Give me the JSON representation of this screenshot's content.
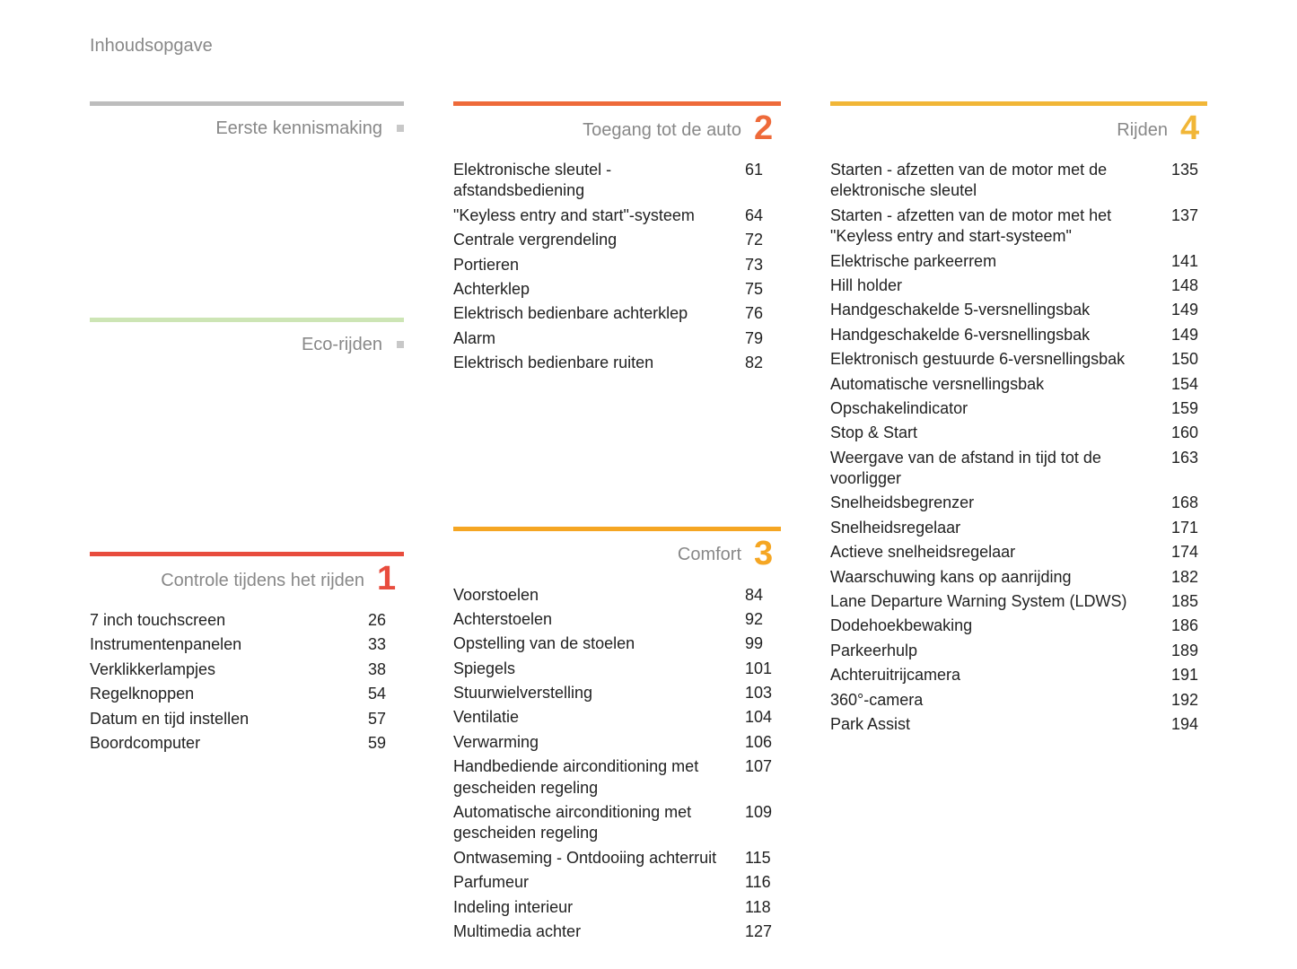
{
  "page_title": "Inhoudsopgave",
  "colors": {
    "gray": "#bdbdbd",
    "lightgreen": "#cde5b5",
    "red": "#e84c3d",
    "orange": "#ee6a3a",
    "amber": "#f5a623",
    "gold": "#f1b637",
    "text_muted": "#888888"
  },
  "left_column": [
    {
      "rule_color": "#bdbdbd",
      "title": "Eerste kennismaking",
      "has_dot": true,
      "entries": []
    },
    {
      "rule_color": "#cde5b5",
      "title": "Eco-rijden",
      "has_dot": true,
      "entries": []
    },
    {
      "rule_color": "#e84c3d",
      "title": "Controle tijdens het rijden",
      "number": "1",
      "number_color": "#e84c3d",
      "entries": [
        {
          "label": "7 inch touchscreen",
          "page": "26"
        },
        {
          "label": "Instrumentenpanelen",
          "page": "33"
        },
        {
          "label": "Verklikkerlampjes",
          "page": "38"
        },
        {
          "label": "Regelknoppen",
          "page": "54"
        },
        {
          "label": "Datum en tijd instellen",
          "page": "57"
        },
        {
          "label": "Boordcomputer",
          "page": "59"
        }
      ]
    }
  ],
  "mid_column": [
    {
      "rule_color": "#ee6a3a",
      "title": "Toegang tot de auto",
      "number": "2",
      "number_color": "#ee6a3a",
      "entries": [
        {
          "label": "Elektronische sleutel - afstandsbediening",
          "page": "61"
        },
        {
          "label": "\"Keyless entry and start\"-systeem",
          "page": "64"
        },
        {
          "label": "Centrale vergrendeling",
          "page": "72"
        },
        {
          "label": "Portieren",
          "page": "73"
        },
        {
          "label": "Achterklep",
          "page": "75"
        },
        {
          "label": "Elektrisch bedienbare achterklep",
          "page": "76"
        },
        {
          "label": "Alarm",
          "page": "79"
        },
        {
          "label": "Elektrisch bedienbare ruiten",
          "page": "82"
        }
      ]
    },
    {
      "rule_color": "#f5a623",
      "title": "Comfort",
      "number": "3",
      "number_color": "#f5a623",
      "entries": [
        {
          "label": "Voorstoelen",
          "page": "84"
        },
        {
          "label": "Achterstoelen",
          "page": "92"
        },
        {
          "label": "Opstelling van de stoelen",
          "page": "99"
        },
        {
          "label": "Spiegels",
          "page": "101"
        },
        {
          "label": "Stuurwielverstelling",
          "page": "103"
        },
        {
          "label": "Ventilatie",
          "page": "104"
        },
        {
          "label": "Verwarming",
          "page": "106"
        },
        {
          "label": "Handbediende airconditioning met gescheiden regeling",
          "page": "107"
        },
        {
          "label": "Automatische airconditioning met gescheiden regeling",
          "page": "109"
        },
        {
          "label": "Ontwaseming - Ontdooiing achterruit",
          "page": "115"
        },
        {
          "label": "Parfumeur",
          "page": "116"
        },
        {
          "label": "Indeling interieur",
          "page": "118"
        },
        {
          "label": "Multimedia achter",
          "page": "127"
        }
      ]
    }
  ],
  "right_column": [
    {
      "rule_color": "#f1b637",
      "title": "Rijden",
      "number": "4",
      "number_color": "#f1b637",
      "entries": [
        {
          "label": "Starten - afzetten van de motor met de elektronische sleutel",
          "page": "135"
        },
        {
          "label": "Starten - afzetten van de motor met het \"Keyless entry and start-systeem\"",
          "page": "137"
        },
        {
          "label": "Elektrische parkeerrem",
          "page": "141"
        },
        {
          "label": "Hill holder",
          "page": "148"
        },
        {
          "label": "Handgeschakelde 5-versnellingsbak",
          "page": "149"
        },
        {
          "label": "Handgeschakelde 6-versnellingsbak",
          "page": "149"
        },
        {
          "label": "Elektronisch gestuurde 6-versnellingsbak",
          "page": "150"
        },
        {
          "label": "Automatische versnellingsbak",
          "page": "154"
        },
        {
          "label": "Opschakelindicator",
          "page": "159"
        },
        {
          "label": "Stop & Start",
          "page": "160"
        },
        {
          "label": "Weergave van de afstand in tijd tot de voorligger",
          "page": "163"
        },
        {
          "label": "Snelheidsbegrenzer",
          "page": "168"
        },
        {
          "label": "Snelheidsregelaar",
          "page": "171"
        },
        {
          "label": "Actieve snelheidsregelaar",
          "page": "174"
        },
        {
          "label": "Waarschuwing kans op aanrijding",
          "page": "182"
        },
        {
          "label": "Lane Departure Warning System (LDWS)",
          "page": "185"
        },
        {
          "label": "Dodehoekbewaking",
          "page": "186"
        },
        {
          "label": "Parkeerhulp",
          "page": "189"
        },
        {
          "label": "Achteruitrijcamera",
          "page": "191"
        },
        {
          "label": "360°-camera",
          "page": "192"
        },
        {
          "label": "Park Assist",
          "page": "194"
        }
      ]
    }
  ]
}
